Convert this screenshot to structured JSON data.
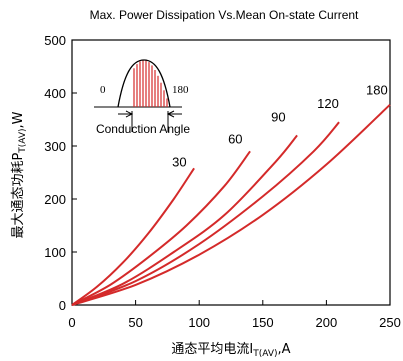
{
  "chart_data": {
    "type": "line",
    "title": "Max. Power Dissipation Vs.Mean On-state Current",
    "xlabel": "通态平均电流I",
    "xlabel_sub": "T(AV)",
    "xlabel_unit": ",A",
    "ylabel": "最大通态功耗P",
    "ylabel_sub": "T(AV)",
    "ylabel_unit": ",W",
    "xlim": [
      0,
      250
    ],
    "ylim": [
      0,
      500
    ],
    "xticks": [
      "0",
      "50",
      "100",
      "150",
      "200",
      "250"
    ],
    "yticks": [
      "0",
      "100",
      "200",
      "300",
      "400",
      "500"
    ],
    "grid": false,
    "series_color": "#d42a2a",
    "series": [
      {
        "name": "30",
        "x": [
          0,
          20,
          40,
          60,
          80,
          96
        ],
        "y": [
          0,
          35,
          80,
          135,
          200,
          258
        ]
      },
      {
        "name": "60",
        "x": [
          0,
          30,
          60,
          90,
          120,
          140
        ],
        "y": [
          0,
          38,
          90,
          150,
          225,
          290
        ]
      },
      {
        "name": "90",
        "x": [
          0,
          40,
          80,
          120,
          160,
          177
        ],
        "y": [
          0,
          40,
          100,
          170,
          270,
          320
        ]
      },
      {
        "name": "120",
        "x": [
          0,
          50,
          100,
          150,
          190,
          210
        ],
        "y": [
          0,
          45,
          115,
          205,
          290,
          345
        ]
      },
      {
        "name": "180",
        "x": [
          0,
          50,
          100,
          150,
          200,
          250
        ],
        "y": [
          0,
          38,
          95,
          170,
          265,
          378
        ]
      }
    ],
    "inset": {
      "label_left": "0",
      "label_right": "180",
      "caption": "Conduction Angle"
    }
  }
}
